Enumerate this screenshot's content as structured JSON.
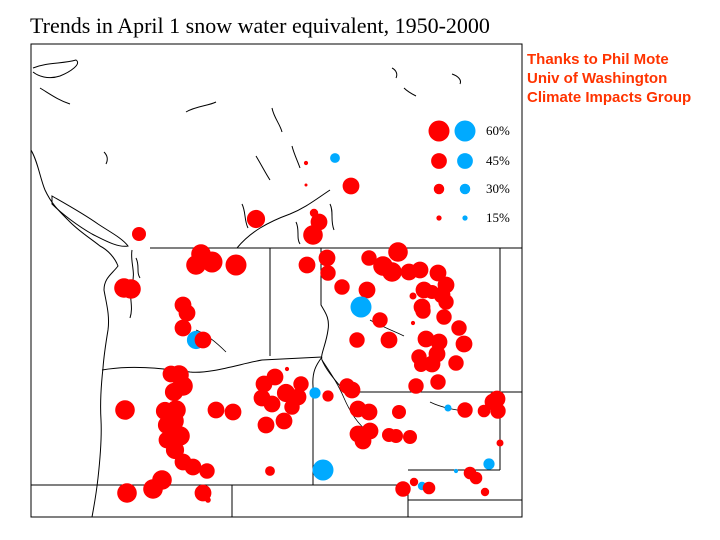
{
  "title": "Trends in April 1 snow water equivalent, 1950-2000",
  "credits": [
    "Thanks to Phil Mote",
    "Univ of Washington",
    "Climate Impacts Group"
  ],
  "colors": {
    "decrease": "#ff0000",
    "increase": "#00aaff",
    "credit": "#ff3300",
    "lines": "#000000"
  },
  "legend": [
    {
      "label": "60%",
      "value": 60
    },
    {
      "label": "45%",
      "value": 45
    },
    {
      "label": "30%",
      "value": 30
    },
    {
      "label": "15%",
      "value": 15
    }
  ],
  "chart_data": {
    "type": "scatter",
    "encoding": "circle size = magnitude of trend (%); red = decreasing, blue = increasing",
    "series": [
      {
        "name": "decrease",
        "color": "#ff0000"
      },
      {
        "name": "increase",
        "color": "#00aaff"
      }
    ]
  }
}
